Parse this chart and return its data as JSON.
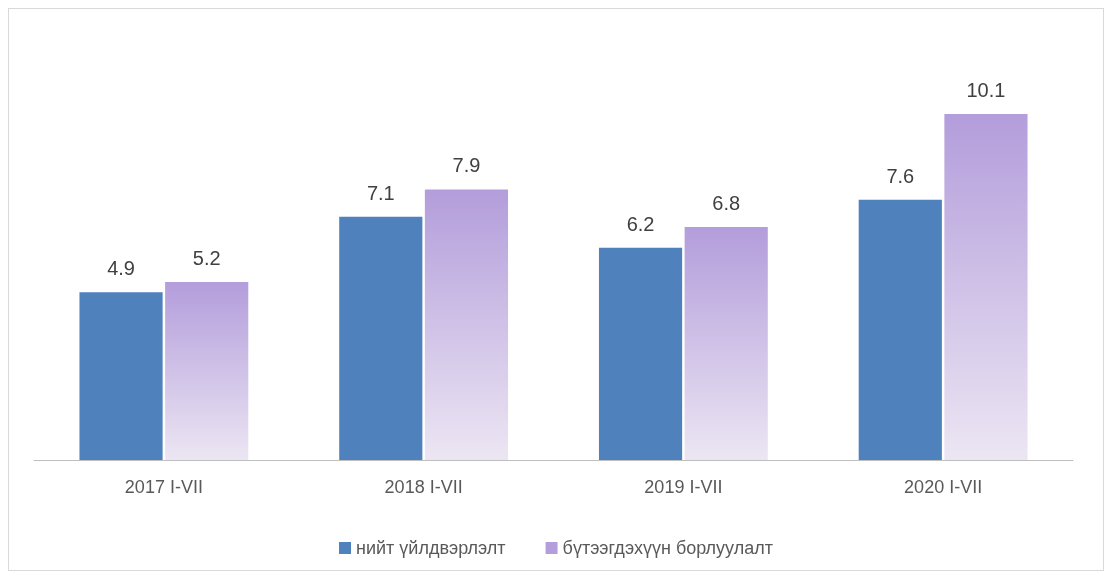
{
  "chart_data": {
    "type": "bar",
    "categories": [
      "2017 I-VII",
      "2018 I-VII",
      "2019 I-VII",
      "2020 I-VII"
    ],
    "series": [
      {
        "name": "нийт үйлдвэрлэлт",
        "color": "#4f81bd",
        "values": [
          4.9,
          7.1,
          6.2,
          7.6
        ]
      },
      {
        "name": "бүтээгдэхүүн борлуулалт",
        "color": "#b39ddb",
        "values": [
          5.2,
          7.9,
          6.8,
          10.1
        ]
      }
    ],
    "data_labels": true,
    "legend": "bottom",
    "grid": false
  }
}
